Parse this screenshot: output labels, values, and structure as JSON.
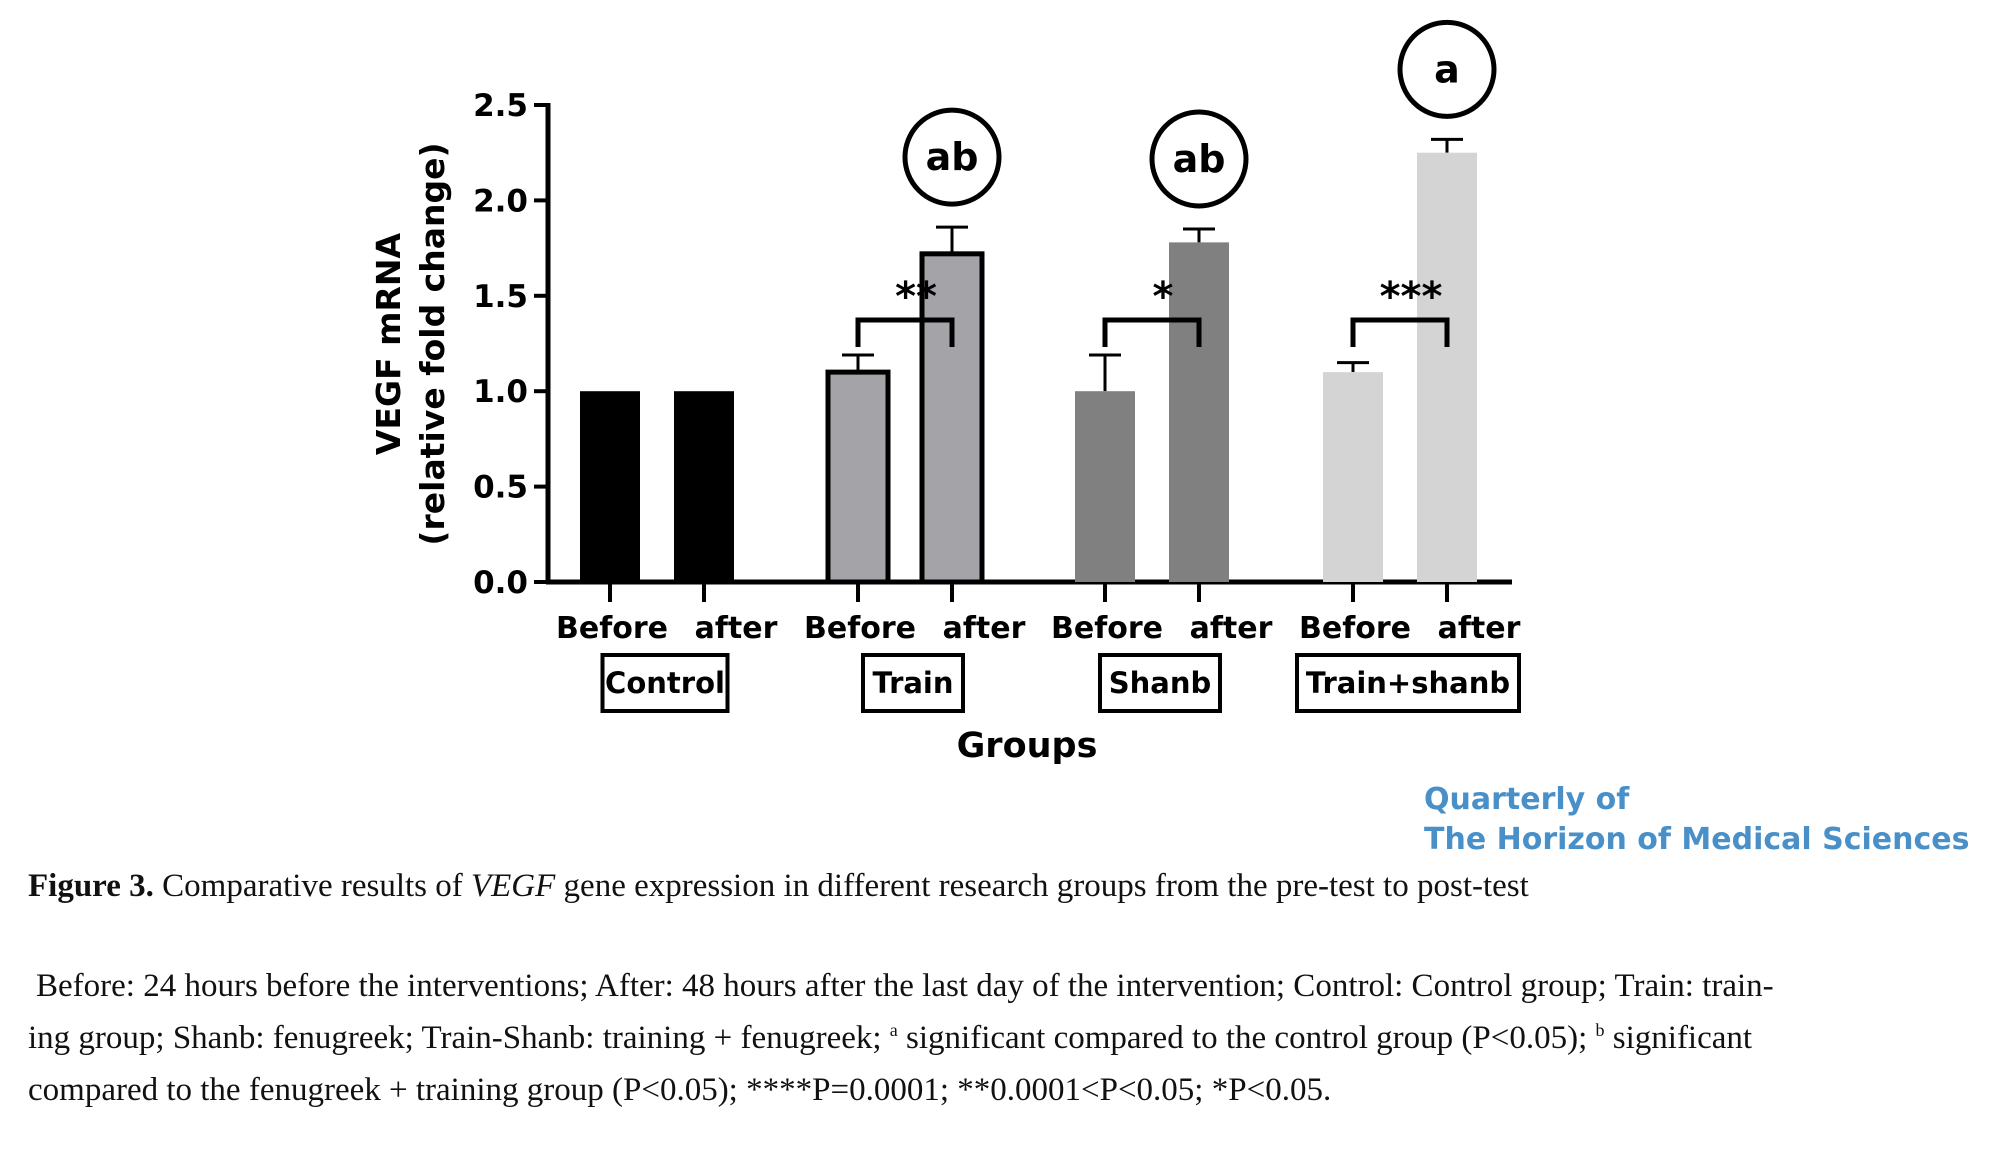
{
  "chart_data": {
    "type": "bar",
    "ylabel": "VEGF mRNA",
    "ylabel2": "(relative fold change)",
    "xlabel": "Groups",
    "ylim": [
      0,
      2.5
    ],
    "yticks": [
      "0.0",
      "0.5",
      "1.0",
      "1.5",
      "2.0",
      "2.5"
    ],
    "subcategory_labels": [
      "Before",
      "after"
    ],
    "groups": [
      {
        "name": "Control",
        "color": "#000000",
        "outlined": false,
        "values": [
          1.0,
          1.0
        ],
        "errors": [
          0,
          0
        ],
        "letter": "",
        "stars": ""
      },
      {
        "name": "Train",
        "color": "#a3a3a8",
        "outlined": true,
        "values": [
          1.1,
          1.72
        ],
        "errors": [
          0.09,
          0.14
        ],
        "letter": "ab",
        "stars": "**"
      },
      {
        "name": "Shanb",
        "color": "#808080",
        "outlined": false,
        "values": [
          1.0,
          1.78
        ],
        "errors": [
          0.19,
          0.07
        ],
        "letter": "ab",
        "stars": "*"
      },
      {
        "name": "Train+shanb",
        "color": "#d4d4d4",
        "outlined": false,
        "values": [
          1.1,
          2.25
        ],
        "errors": [
          0.05,
          0.07
        ],
        "letter": "a",
        "stars": "***"
      }
    ]
  },
  "watermark": {
    "line1": "Quarterly of",
    "line2": "The Horizon of Medical Sciences"
  },
  "caption": {
    "figure_label": "Figure 3.",
    "text_before": " Comparative results of ",
    "gene": "VEGF",
    "text_after": " gene expression in different research groups from the pre-test to post-test"
  },
  "notes": {
    "line1": "Before: 24 hours before the interventions; After: 48 hours after the last day of the intervention; Control: Control group; Train: train-",
    "line2a": "ing group; Shanb: fenugreek; Train-Shanb: training + fenugreek; ",
    "sup_a": "a",
    "line2b": " significant compared to the control group (P<0.05); ",
    "sup_b": "b",
    "line2c": " significant",
    "line3": "compared to the fenugreek + training group (P<0.05); ****P=0.0001; **0.0001<P<0.05; *P<0.05."
  }
}
